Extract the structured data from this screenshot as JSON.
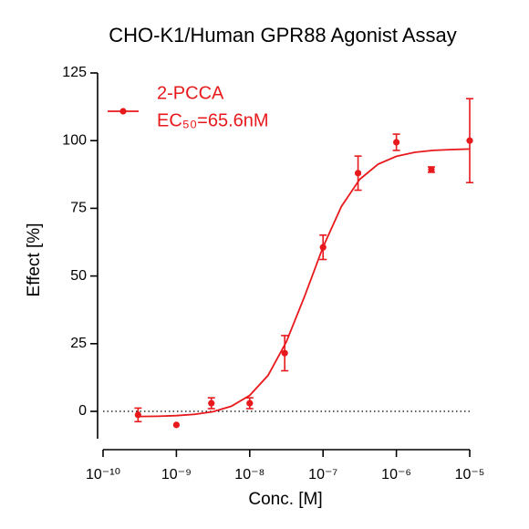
{
  "chart_data": {
    "type": "scatter",
    "title": "CHO-K1/Human GPR88 Agonist Assay",
    "x_label": "Conc. [M]",
    "y_label": "Effect  [%]",
    "log_x": true,
    "xlim": [
      1e-10,
      1e-05
    ],
    "xticks": [
      {
        "value": 1e-10,
        "label": "10⁻¹⁰"
      },
      {
        "value": 1e-09,
        "label": "10⁻⁹"
      },
      {
        "value": 1e-08,
        "label": "10⁻⁸"
      },
      {
        "value": 1e-07,
        "label": "10⁻⁷"
      },
      {
        "value": 1e-06,
        "label": "10⁻⁶"
      },
      {
        "value": 1e-05,
        "label": "10⁻⁵"
      }
    ],
    "ylim": [
      -10,
      125
    ],
    "yticks": [
      0,
      25,
      50,
      75,
      100,
      125
    ],
    "zero_line": true,
    "legend": "upper left",
    "annotation": "EC₅₀=65.6nM",
    "series": [
      {
        "name": "2-PCCA",
        "color": "#e8191c",
        "x": [
          3e-10,
          1e-09,
          3e-09,
          1e-08,
          3e-08,
          1e-07,
          3e-07,
          1e-06,
          3e-06,
          1e-05
        ],
        "values": [
          -1.3,
          -5,
          3,
          3,
          21.5,
          60.6,
          88,
          99.4,
          89.3,
          100
        ],
        "errors": [
          2.5,
          null,
          2,
          2,
          6.5,
          4.5,
          6.3,
          3,
          1,
          15.5
        ],
        "fit_x": [
          3.16e-10,
          5.62e-10,
          1e-09,
          1.78e-09,
          3.16e-09,
          5.62e-09,
          1e-08,
          1.78e-08,
          3.16e-08,
          5.62e-08,
          1e-07,
          1.78e-07,
          3.16e-07,
          5.62e-07,
          1e-06,
          1.78e-06,
          3.16e-06,
          5.62e-06,
          1e-05
        ],
        "fit_values": [
          -1.9,
          -1.8,
          -1.57,
          -1.1,
          -0.11,
          1.9,
          5.9,
          13.3,
          25.7,
          42.6,
          60.7,
          75.7,
          85.7,
          91.3,
          94.2,
          95.7,
          96.4,
          96.7,
          96.9
        ]
      }
    ]
  }
}
